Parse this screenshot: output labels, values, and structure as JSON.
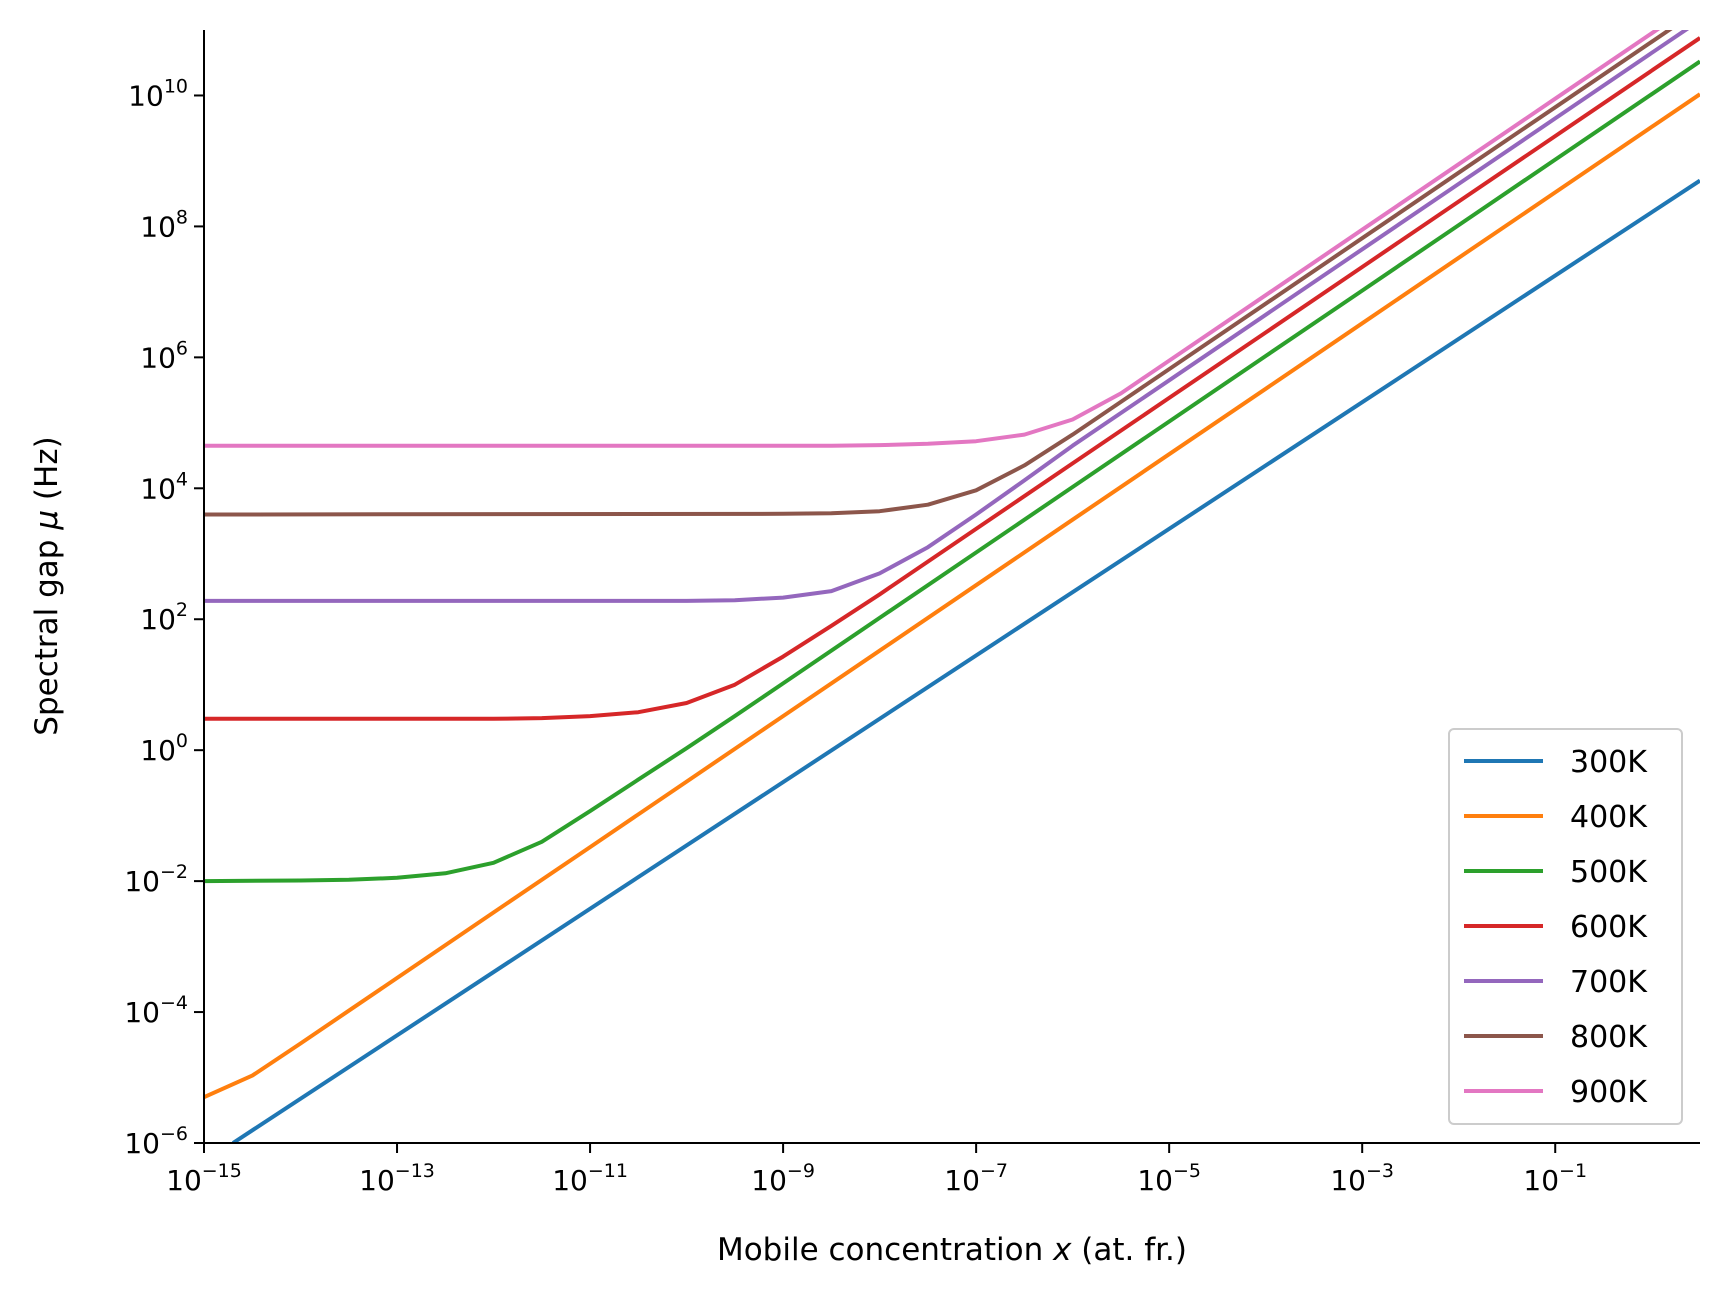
{
  "chart_data": {
    "type": "line",
    "title": "",
    "xlabel_parts": [
      "Mobile concentration ",
      "x",
      " (at. fr.)"
    ],
    "ylabel_parts": [
      "Spectral gap ",
      "μ",
      " (Hz)"
    ],
    "xscale": "log",
    "yscale": "log",
    "xlim_log10": [
      -15,
      0.5
    ],
    "ylim_log10": [
      -6,
      11
    ],
    "grid": false,
    "legend_placement": "lower right",
    "x_ticks": [
      {
        "base": "10",
        "exp": "−15",
        "log10": -15
      },
      {
        "base": "10",
        "exp": "−13",
        "log10": -13
      },
      {
        "base": "10",
        "exp": "−11",
        "log10": -11
      },
      {
        "base": "10",
        "exp": "−9",
        "log10": -9
      },
      {
        "base": "10",
        "exp": "−7",
        "log10": -7
      },
      {
        "base": "10",
        "exp": "−5",
        "log10": -5
      },
      {
        "base": "10",
        "exp": "−3",
        "log10": -3
      },
      {
        "base": "10",
        "exp": "−1",
        "log10": -1
      }
    ],
    "y_ticks": [
      {
        "base": "10",
        "exp": "−6",
        "log10": -6
      },
      {
        "base": "10",
        "exp": "−4",
        "log10": -4
      },
      {
        "base": "10",
        "exp": "−2",
        "log10": -2
      },
      {
        "base": "10",
        "exp": "0",
        "log10": 0
      },
      {
        "base": "10",
        "exp": "2",
        "log10": 2
      },
      {
        "base": "10",
        "exp": "4",
        "log10": 4
      },
      {
        "base": "10",
        "exp": "6",
        "log10": 6
      },
      {
        "base": "10",
        "exp": "8",
        "log10": 8
      },
      {
        "base": "10",
        "exp": "10",
        "log10": 10
      }
    ],
    "series": [
      {
        "name": "300K",
        "color": "#1f77b4",
        "log10_x": [
          -14.7,
          0.5
        ],
        "log10_y": [
          -6.0,
          8.7
        ]
      },
      {
        "name": "400K",
        "color": "#ff7f0e",
        "log10_x": [
          -15,
          -14.5,
          -14,
          -13.5,
          -13,
          -12,
          -11,
          -10,
          -9,
          -8,
          -7,
          -6,
          -5,
          -4,
          -3,
          -2,
          -1,
          0,
          0.5
        ],
        "log10_y": [
          -5.3,
          -4.97,
          -4.48,
          -3.98,
          -3.48,
          -2.48,
          -1.48,
          -0.48,
          0.52,
          1.52,
          2.52,
          3.52,
          4.52,
          5.52,
          6.52,
          7.52,
          8.52,
          9.52,
          10.02
        ]
      },
      {
        "name": "500K",
        "color": "#2ca02c",
        "log10_x": [
          -15,
          -14,
          -13.5,
          -13,
          -12.5,
          -12,
          -11.5,
          -11,
          -10.5,
          -10,
          -9.5,
          -9,
          -8,
          -7,
          -6,
          -5,
          -4,
          -3,
          -2,
          -1,
          0,
          0.5
        ],
        "log10_y": [
          -2.0,
          -1.99,
          -1.98,
          -1.95,
          -1.88,
          -1.72,
          -1.4,
          -0.93,
          -0.45,
          0.03,
          0.52,
          1.02,
          2.02,
          3.02,
          4.02,
          5.02,
          6.02,
          7.02,
          8.02,
          9.02,
          10.02,
          10.52
        ]
      },
      {
        "name": "600K",
        "color": "#d62728",
        "log10_x": [
          -15,
          -12,
          -11.5,
          -11,
          -10.5,
          -10,
          -9.5,
          -9,
          -8.5,
          -8,
          -7,
          -6,
          -5,
          -4,
          -3,
          -2,
          -1,
          0,
          0.5
        ],
        "log10_y": [
          0.48,
          0.48,
          0.49,
          0.52,
          0.58,
          0.72,
          1.0,
          1.43,
          1.9,
          2.38,
          3.38,
          4.38,
          5.38,
          6.38,
          7.38,
          8.38,
          9.38,
          10.38,
          10.88
        ]
      },
      {
        "name": "700K",
        "color": "#9467bd",
        "log10_x": [
          -15,
          -10,
          -9.5,
          -9,
          -8.5,
          -8,
          -7.5,
          -7,
          -6.5,
          -6,
          -5,
          -4,
          -3,
          -2,
          -1,
          0,
          0.5
        ],
        "log10_y": [
          2.28,
          2.28,
          2.29,
          2.33,
          2.43,
          2.7,
          3.1,
          3.6,
          4.12,
          4.65,
          5.65,
          6.65,
          7.65,
          8.65,
          9.65,
          10.65,
          11.15
        ]
      },
      {
        "name": "800K",
        "color": "#8c564b",
        "log10_x": [
          -15,
          -9,
          -8.5,
          -8,
          -7.5,
          -7,
          -6.5,
          -6,
          -5.5,
          -5,
          -4,
          -3,
          -2,
          -1,
          0,
          0.5
        ],
        "log10_y": [
          3.6,
          3.61,
          3.62,
          3.65,
          3.75,
          3.97,
          4.35,
          4.82,
          5.32,
          5.82,
          6.82,
          7.82,
          8.82,
          9.82,
          10.82,
          11.32
        ]
      },
      {
        "name": "900K",
        "color": "#e377c2",
        "log10_x": [
          -15,
          -8.5,
          -8,
          -7.5,
          -7,
          -6.5,
          -6,
          -5.5,
          -5,
          -4,
          -3,
          -2,
          -1,
          0,
          0.5
        ],
        "log10_y": [
          4.65,
          4.65,
          4.66,
          4.68,
          4.72,
          4.82,
          5.05,
          5.45,
          5.95,
          6.95,
          7.95,
          8.95,
          9.95,
          10.95,
          11.45
        ]
      }
    ]
  }
}
